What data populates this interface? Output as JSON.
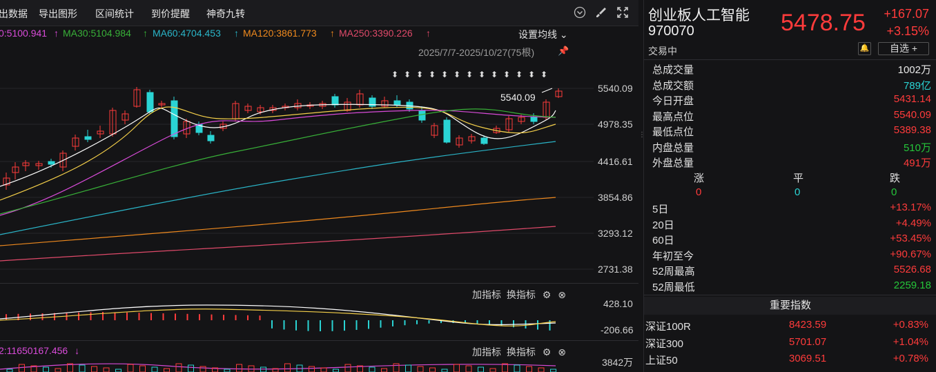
{
  "toolbar": {
    "items": [
      "出数据",
      "导出图形",
      "区间统计",
      "到价提醒",
      "神奇九转"
    ]
  },
  "ma_legend": {
    "ma_partial": "0:5100.941",
    "ma30": "MA30:5104.984",
    "ma60": "MA60:4704.453",
    "ma120": "MA120:3861.773",
    "ma250": "MA250:3390.226",
    "arrow": "↑",
    "set_ma_label": "设置均线",
    "colors": {
      "ma_partial": "#d94bd9",
      "ma30": "#38b038",
      "ma60": "#2ab5c8",
      "ma120": "#f08a1e",
      "ma250": "#e04a6a"
    }
  },
  "date_range": "2025/7/7-2025/10/27(75根)",
  "y_axis": [
    "5540.09",
    "4978.35",
    "4416.61",
    "3854.86",
    "3293.12",
    "2731.38"
  ],
  "high_marker": "5540.09",
  "macd_panel": {
    "add_label": "加指标",
    "switch_label": "换指标",
    "y_top": "428.10",
    "y_bottom": "-206.66"
  },
  "vol_panel": {
    "legend": "2:11650167.456",
    "legend_arrow": "↓",
    "add_label": "加指标",
    "switch_label": "换指标",
    "y_top": "3842万"
  },
  "quote": {
    "name": "创业板人工智能",
    "code": "970070",
    "price": "5478.75",
    "change": "+167.07",
    "pct": "+3.15%",
    "status": "交易中",
    "fav_label": "自选 +"
  },
  "stats": [
    {
      "label": "总成交量",
      "value": "1002万",
      "color": "white"
    },
    {
      "label": "总成交额",
      "value": "789亿",
      "color": "cyan"
    },
    {
      "label": "今日开盘",
      "value": "5431.14",
      "color": "red"
    },
    {
      "label": "最高点位",
      "value": "5540.09",
      "color": "red"
    },
    {
      "label": "最低点位",
      "value": "5389.38",
      "color": "red"
    },
    {
      "label": "内盘总量",
      "value": "510万",
      "color": "green"
    },
    {
      "label": "外盘总量",
      "value": "491万",
      "color": "red"
    }
  ],
  "breadth": {
    "up_label": "涨",
    "flat_label": "平",
    "down_label": "跌",
    "up": "0",
    "flat": "0",
    "down": "0"
  },
  "periods": [
    {
      "label": "5日",
      "value": "+13.17%",
      "color": "red"
    },
    {
      "label": "20日",
      "value": "+4.49%",
      "color": "red"
    },
    {
      "label": "60日",
      "value": "+53.45%",
      "color": "red"
    },
    {
      "label": "年初至今",
      "value": "+90.67%",
      "color": "red"
    },
    {
      "label": "52周最高",
      "value": "5526.68",
      "color": "red"
    },
    {
      "label": "52周最低",
      "value": "2259.18",
      "color": "green"
    }
  ],
  "important": {
    "title": "重要指数",
    "rows": [
      {
        "name": "深证100R",
        "price": "8423.59",
        "change": "+0.83%"
      },
      {
        "name": "深证300",
        "price": "5701.07",
        "change": "+1.04%"
      },
      {
        "name": "上证50",
        "price": "3069.51",
        "change": "+0.78%"
      }
    ]
  }
}
